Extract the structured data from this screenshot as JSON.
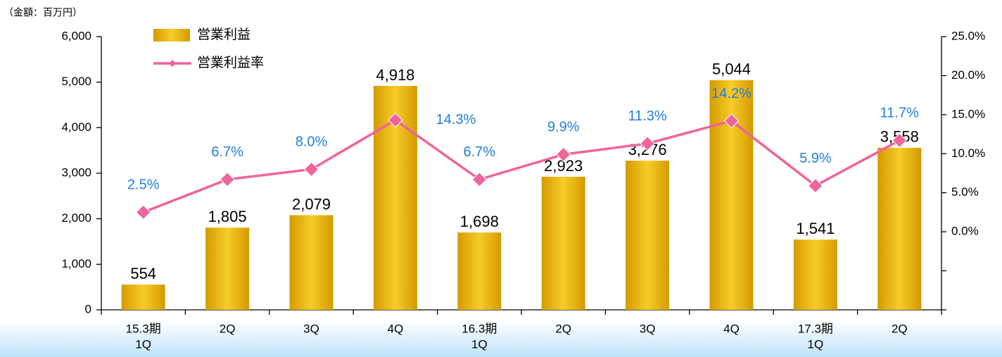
{
  "chart_data": {
    "type": "bar-line",
    "unit_label": "（金額：百万円）",
    "categories": [
      [
        "15.3期",
        "1Q"
      ],
      [
        "2Q"
      ],
      [
        "3Q"
      ],
      [
        "4Q"
      ],
      [
        "16.3期",
        "1Q"
      ],
      [
        "2Q"
      ],
      [
        "3Q"
      ],
      [
        "4Q"
      ],
      [
        "17.3期",
        "1Q"
      ],
      [
        "2Q"
      ]
    ],
    "series": [
      {
        "name": "営業利益",
        "type": "bar",
        "color": "#e8b010",
        "values": [
          554,
          1805,
          2079,
          4918,
          1698,
          2923,
          3276,
          5044,
          1541,
          3558
        ],
        "value_labels": [
          "554",
          "1,805",
          "2,079",
          "4,918",
          "1,698",
          "2,923",
          "3,276",
          "5,044",
          "1,541",
          "3,558"
        ]
      },
      {
        "name": "営業利益率",
        "type": "line",
        "axis": "y2",
        "color": "#f0649c",
        "label_color": "#1f7fe0",
        "values": [
          2.5,
          6.7,
          8.0,
          14.3,
          6.7,
          9.9,
          11.3,
          14.2,
          5.9,
          11.7
        ],
        "value_labels": [
          "2.5%",
          "6.7%",
          "8.0%",
          "14.3%",
          "6.7%",
          "9.9%",
          "11.3%",
          "14.2%",
          "5.9%",
          "11.7%"
        ]
      }
    ],
    "ylim": [
      0,
      6000
    ],
    "yticks": [
      0,
      {
        "value": 1000,
        "label": "1,000"
      },
      {
        "value": 2000,
        "label": "2,000"
      },
      {
        "value": 3000,
        "label": "3,000"
      },
      {
        "value": 4000,
        "label": "4,000"
      },
      {
        "value": 5000,
        "label": "5,000"
      },
      {
        "value": 6000,
        "label": "6,000"
      }
    ],
    "y2lim": [
      -10,
      25
    ],
    "y2ticks": [
      {
        "value": -10,
        "label": null
      },
      {
        "value": -5,
        "label": null
      },
      {
        "value": 0,
        "label": "0.0%"
      },
      {
        "value": 5,
        "label": "5.0%"
      },
      {
        "value": 10,
        "label": "10.0%"
      },
      {
        "value": 15,
        "label": "15.0%"
      },
      {
        "value": 20,
        "label": "20.0%"
      },
      {
        "value": 25,
        "label": "25.0%"
      }
    ],
    "grid": false
  }
}
